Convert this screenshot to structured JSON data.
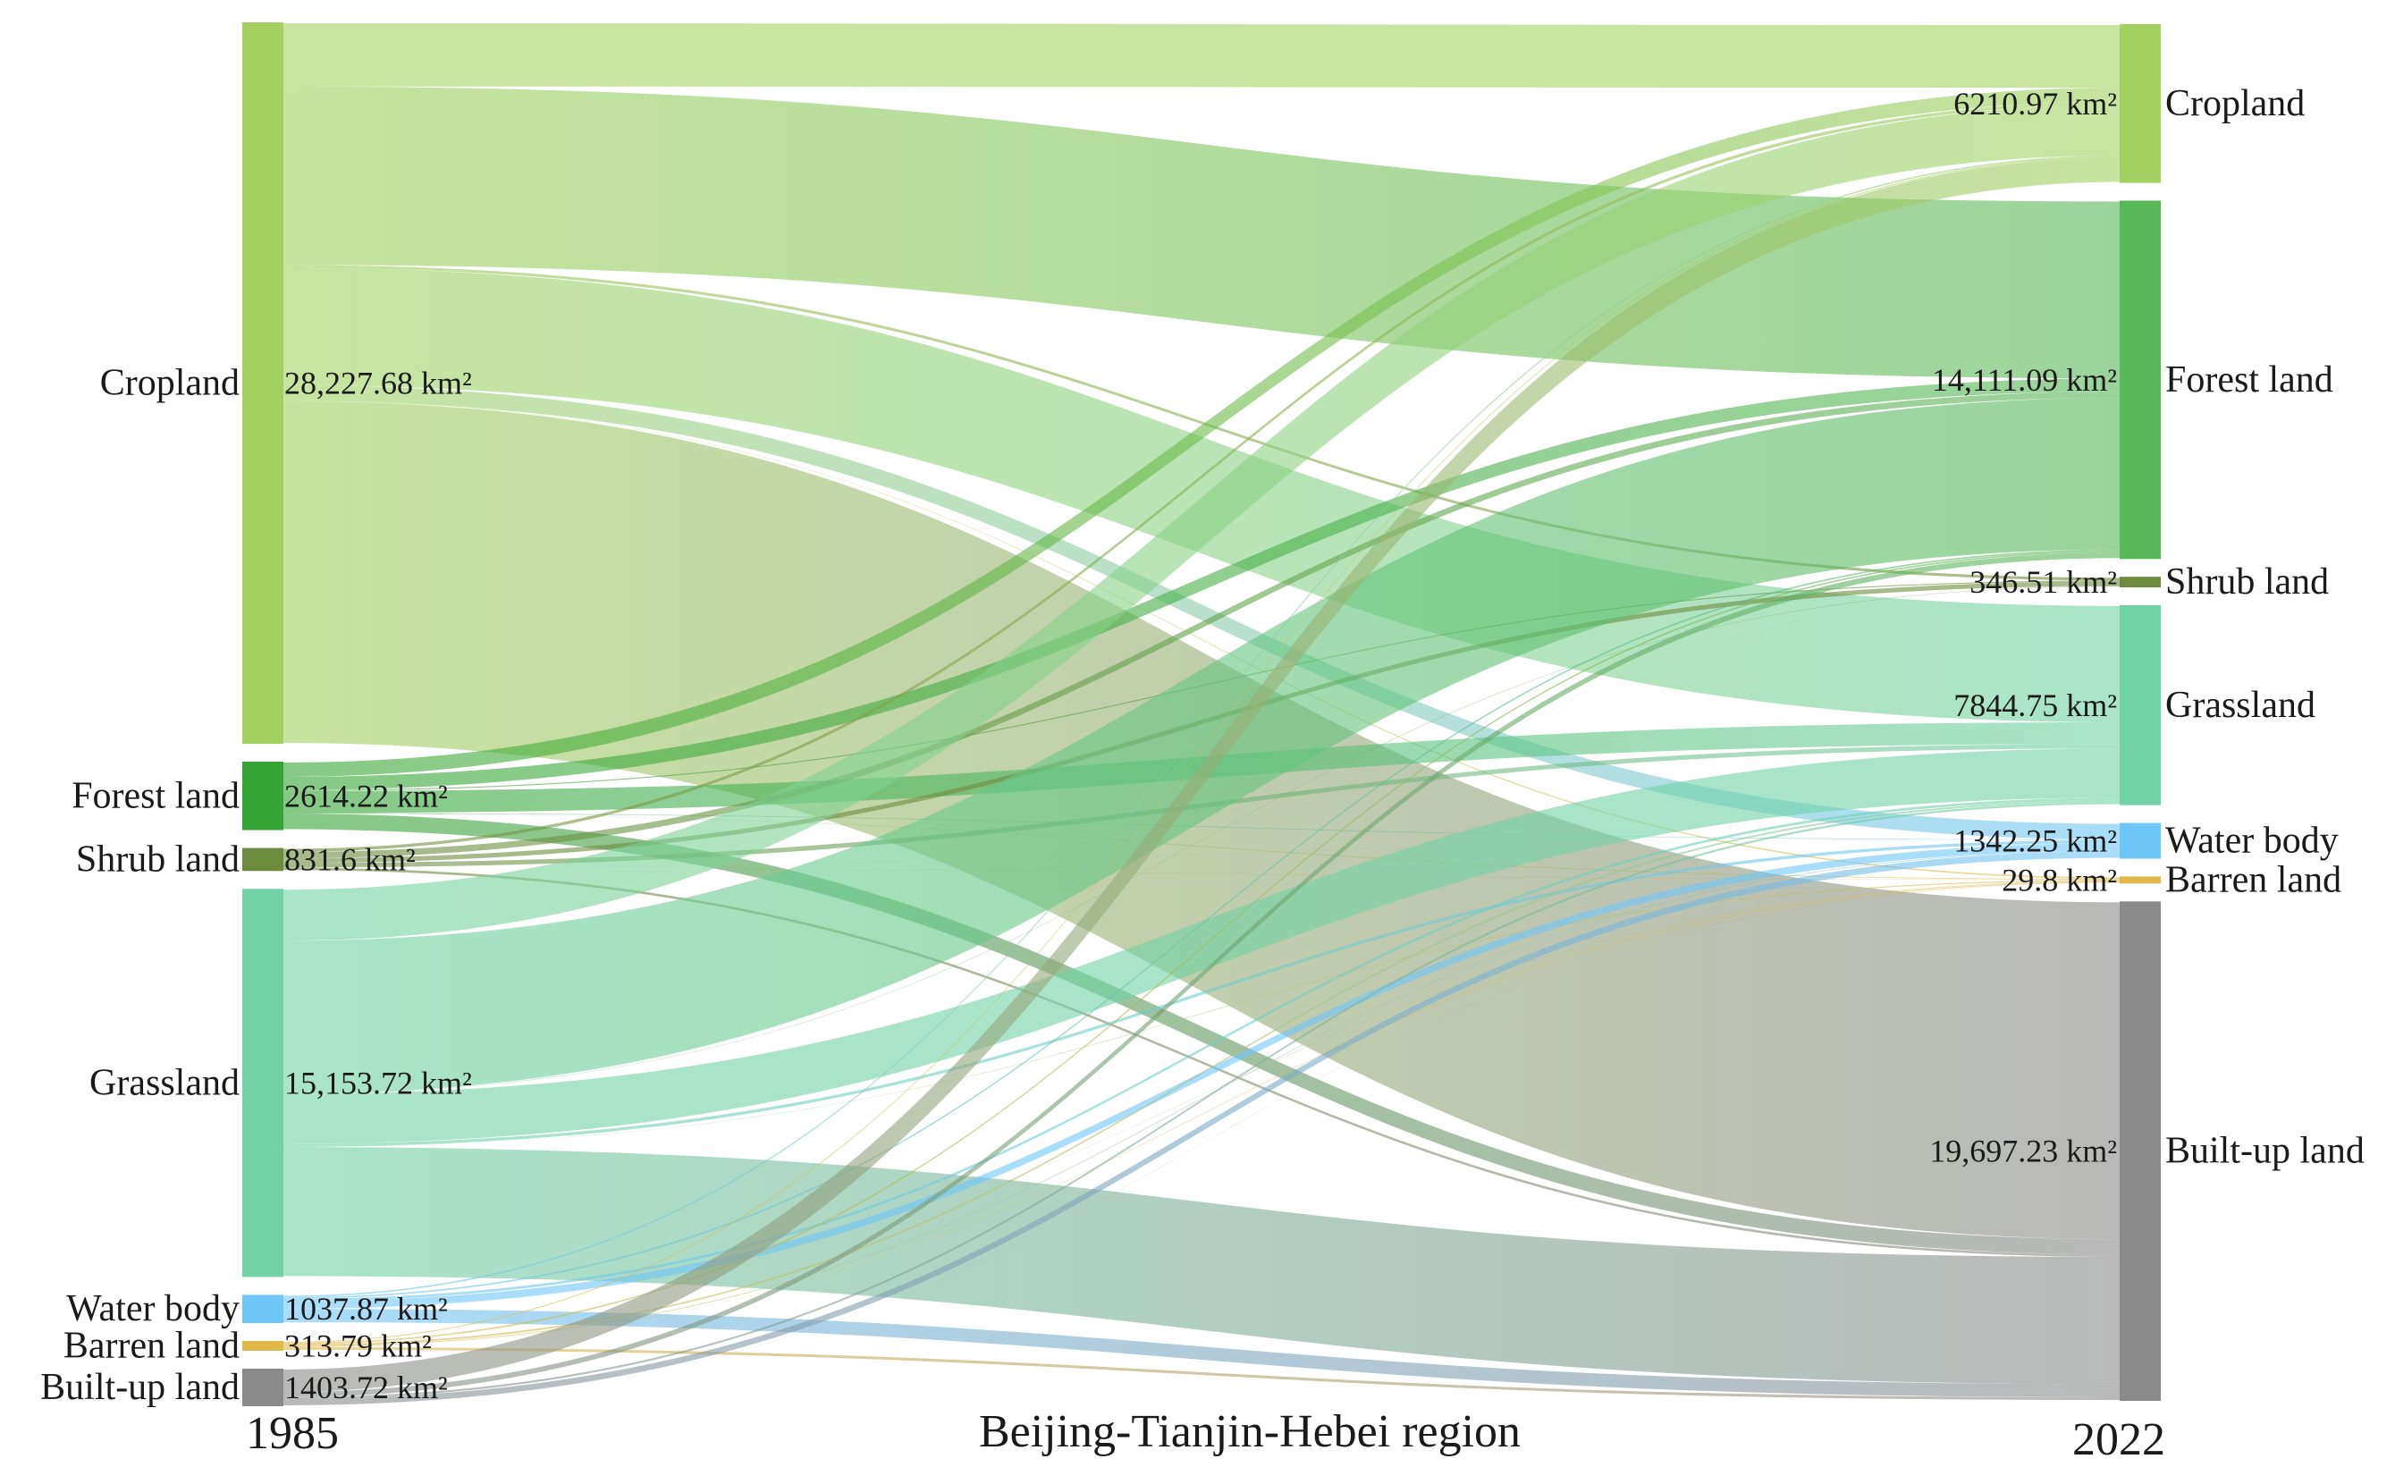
{
  "chart_data": {
    "type": "sankey",
    "title": "Beijing-Tianjin-Hebei region",
    "left_year": "1985",
    "right_year": "2022",
    "unit": "km²",
    "left_nodes": [
      {
        "id": "cropland",
        "name": "Cropland",
        "value": 28227.68,
        "value_label": "28,227.68 km²",
        "color": "#a3d160"
      },
      {
        "id": "forest",
        "name": "Forest land",
        "value": 2614.22,
        "value_label": "2614.22 km²",
        "color": "#34a534"
      },
      {
        "id": "shrub",
        "name": "Shrub land",
        "value": 831.6,
        "value_label": "831.6 km²",
        "color": "#6e8a3c"
      },
      {
        "id": "grass",
        "name": "Grassland",
        "value": 15153.72,
        "value_label": "15,153.72 km²",
        "color": "#70d2a6"
      },
      {
        "id": "water",
        "name": "Water body",
        "value": 1037.87,
        "value_label": "1037.87 km²",
        "color": "#6ec6f8"
      },
      {
        "id": "barren",
        "name": "Barren land",
        "value": 313.79,
        "value_label": "313.79 km²",
        "color": "#e0b84a"
      },
      {
        "id": "built",
        "name": "Built-up land",
        "value": 1403.72,
        "value_label": "1403.72 km²",
        "color": "#8a8a8a"
      }
    ],
    "right_nodes": [
      {
        "id": "cropland",
        "name": "Cropland",
        "value": 6210.97,
        "value_label": "6210.97 km²",
        "color": "#a3d160"
      },
      {
        "id": "forest",
        "name": "Forest land",
        "value": 14111.09,
        "value_label": "14,111.09 km²",
        "color": "#58b858"
      },
      {
        "id": "shrub",
        "name": "Shrub land",
        "value": 346.51,
        "value_label": "346.51 km²",
        "color": "#6e8a3c"
      },
      {
        "id": "grass",
        "name": "Grassland",
        "value": 7844.75,
        "value_label": "7844.75 km²",
        "color": "#70d2a6"
      },
      {
        "id": "water",
        "name": "Water body",
        "value": 1342.25,
        "value_label": "1342.25 km²",
        "color": "#6ec6f8"
      },
      {
        "id": "barren",
        "name": "Barren land",
        "value": 29.8,
        "value_label": "29.8 km²",
        "color": "#e0b84a"
      },
      {
        "id": "built",
        "name": "Built-up land",
        "value": 19697.23,
        "value_label": "19,697.23 km²",
        "color": "#8a8a8a"
      }
    ],
    "flows": [
      {
        "source": "cropland",
        "target": "cropland",
        "value": 2480
      },
      {
        "source": "cropland",
        "target": "forest",
        "value": 7000
      },
      {
        "source": "cropland",
        "target": "shrub",
        "value": 110
      },
      {
        "source": "cropland",
        "target": "grass",
        "value": 4600
      },
      {
        "source": "cropland",
        "target": "water",
        "value": 620
      },
      {
        "source": "cropland",
        "target": "barren",
        "value": 8
      },
      {
        "source": "cropland",
        "target": "built",
        "value": 13409.68
      },
      {
        "source": "forest",
        "target": "cropland",
        "value": 560
      },
      {
        "source": "forest",
        "target": "forest",
        "value": 520
      },
      {
        "source": "forest",
        "target": "shrub",
        "value": 40
      },
      {
        "source": "forest",
        "target": "grass",
        "value": 860
      },
      {
        "source": "forest",
        "target": "water",
        "value": 20
      },
      {
        "source": "forest",
        "target": "barren",
        "value": 4
      },
      {
        "source": "forest",
        "target": "built",
        "value": 610.22
      },
      {
        "source": "shrub",
        "target": "cropland",
        "value": 120
      },
      {
        "source": "shrub",
        "target": "forest",
        "value": 250
      },
      {
        "source": "shrub",
        "target": "shrub",
        "value": 180
      },
      {
        "source": "shrub",
        "target": "grass",
        "value": 180
      },
      {
        "source": "shrub",
        "target": "water",
        "value": 3
      },
      {
        "source": "shrub",
        "target": "barren",
        "value": 2
      },
      {
        "source": "shrub",
        "target": "built",
        "value": 96.6
      },
      {
        "source": "grass",
        "target": "cropland",
        "value": 2000
      },
      {
        "source": "grass",
        "target": "forest",
        "value": 6000
      },
      {
        "source": "grass",
        "target": "shrub",
        "value": 15
      },
      {
        "source": "grass",
        "target": "grass",
        "value": 1950
      },
      {
        "source": "grass",
        "target": "water",
        "value": 120
      },
      {
        "source": "grass",
        "target": "barren",
        "value": 6
      },
      {
        "source": "grass",
        "target": "built",
        "value": 5062.72
      },
      {
        "source": "water",
        "target": "cropland",
        "value": 60
      },
      {
        "source": "water",
        "target": "forest",
        "value": 60
      },
      {
        "source": "water",
        "target": "shrub",
        "value": 1
      },
      {
        "source": "water",
        "target": "grass",
        "value": 100
      },
      {
        "source": "water",
        "target": "water",
        "value": 290
      },
      {
        "source": "water",
        "target": "barren",
        "value": 3
      },
      {
        "source": "water",
        "target": "built",
        "value": 523.87
      },
      {
        "source": "barren",
        "target": "cropland",
        "value": 40
      },
      {
        "source": "barren",
        "target": "forest",
        "value": 60
      },
      {
        "source": "barren",
        "target": "shrub",
        "value": 0.5
      },
      {
        "source": "barren",
        "target": "grass",
        "value": 70
      },
      {
        "source": "barren",
        "target": "water",
        "value": 30
      },
      {
        "source": "barren",
        "target": "barren",
        "value": 5
      },
      {
        "source": "barren",
        "target": "built",
        "value": 108.29
      },
      {
        "source": "built",
        "target": "cropland",
        "value": 950.97
      },
      {
        "source": "built",
        "target": "forest",
        "value": 221.09
      },
      {
        "source": "built",
        "target": "shrub",
        "value": 0.01
      },
      {
        "source": "built",
        "target": "grass",
        "value": 84.75
      },
      {
        "source": "built",
        "target": "water",
        "value": 259.25
      },
      {
        "source": "built",
        "target": "barren",
        "value": 1.8
      },
      {
        "source": "built",
        "target": "built",
        "value": -113.85
      }
    ]
  }
}
